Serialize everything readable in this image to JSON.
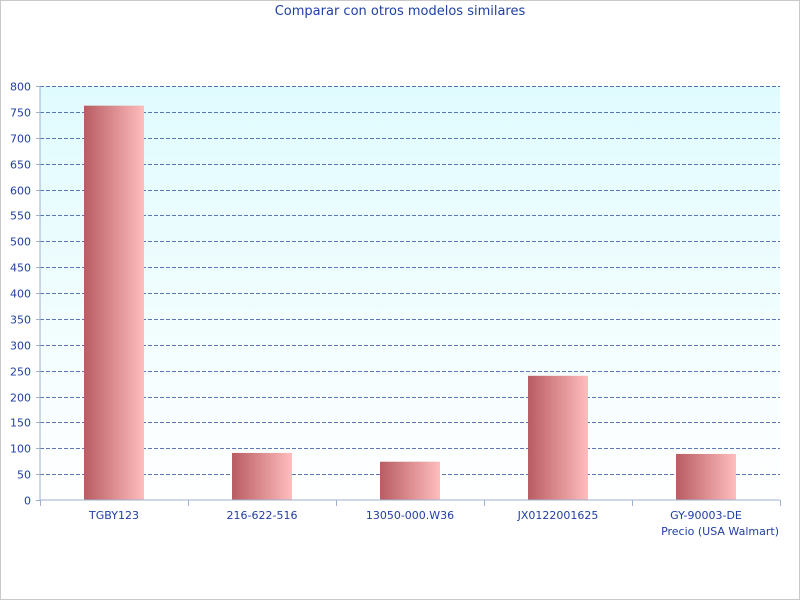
{
  "chart_data": {
    "type": "bar",
    "title": "Comparar con otros modelos similares",
    "xlabel": "Precio (USA Walmart)",
    "ylabel": "",
    "categories": [
      "TGBY123",
      "216-622-516",
      "13050-000.W36",
      "JX0122001625",
      "GY-90003-DE"
    ],
    "values": [
      762,
      91,
      74,
      240,
      89
    ],
    "ylim": [
      0,
      800
    ],
    "yticks": [
      0,
      50,
      100,
      150,
      200,
      250,
      300,
      350,
      400,
      450,
      500,
      550,
      600,
      650,
      700,
      750,
      800
    ],
    "grid": true,
    "legend": "none"
  },
  "colors": {
    "text": "#1f3fa3",
    "plot_bg_top": "#e0fbfe",
    "plot_bg_bottom": "#ffffff",
    "grid": "#2b4a9c",
    "axis": "#9fb0cc",
    "bar_dark": "#b85c62",
    "bar_light": "#ffbdbd"
  }
}
